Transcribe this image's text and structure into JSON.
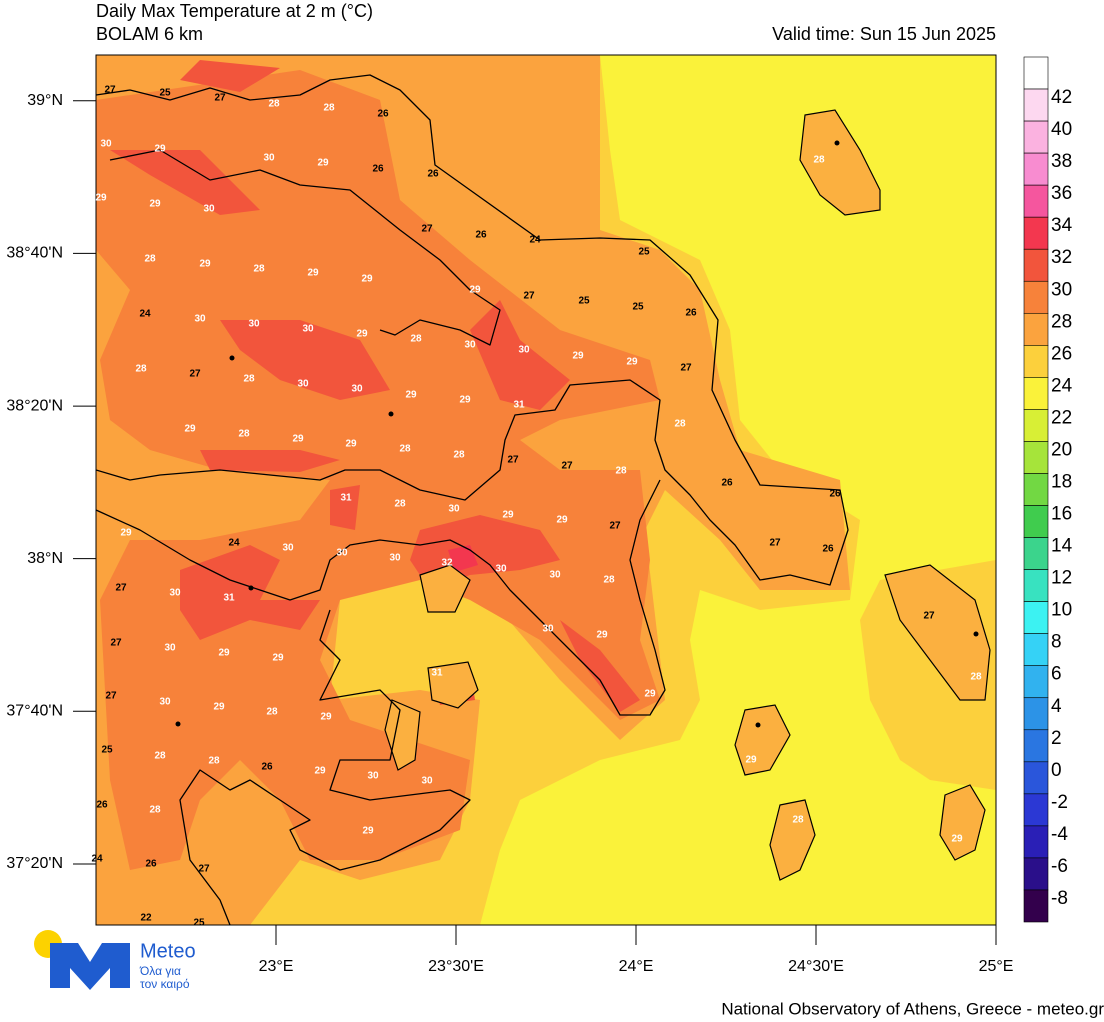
{
  "header": {
    "title": "Daily Max Temperature at 2 m (°C)",
    "model": "BOLAM 6 km",
    "valid_time": "Valid time: Sun 15 Jun 2025"
  },
  "map": {
    "xlim": [
      22.5,
      25
    ],
    "xticks": [
      {
        "value": 23,
        "label": "23°E"
      },
      {
        "value": 23.5,
        "label": "23°30'E"
      },
      {
        "value": 24,
        "label": "24°E"
      },
      {
        "value": 24.5,
        "label": "24°30'E"
      },
      {
        "value": 25,
        "label": "25°E"
      }
    ],
    "ylim": [
      37.2,
      39.1
    ],
    "yticks": [
      {
        "value": 39,
        "label": "39°N"
      },
      {
        "value": 38.6667,
        "label": "38°40'N"
      },
      {
        "value": 38.3333,
        "label": "38°20'N"
      },
      {
        "value": 38,
        "label": "38°N"
      },
      {
        "value": 37.6667,
        "label": "37°40'N"
      },
      {
        "value": 37.3333,
        "label": "37°20'N"
      }
    ],
    "point_values": [
      27,
      25,
      27,
      28,
      28,
      26,
      30,
      29,
      30,
      29,
      26,
      26,
      29,
      29,
      30,
      27,
      26,
      24,
      25,
      28,
      29,
      28,
      29,
      29,
      24,
      30,
      30,
      30,
      29,
      28,
      30,
      30,
      29,
      29,
      29,
      27,
      25,
      25,
      26,
      27,
      28,
      27,
      28,
      30,
      30,
      29,
      29,
      31,
      28,
      29,
      28,
      29,
      29,
      28,
      28,
      27,
      27,
      28,
      26,
      26,
      31,
      28,
      30,
      29,
      29,
      27,
      29,
      24,
      30,
      30,
      30,
      32,
      30,
      30,
      28,
      27,
      26,
      27,
      30,
      31,
      30,
      29,
      27,
      28,
      27,
      30,
      29,
      29,
      31,
      29,
      27,
      30,
      29,
      28,
      29,
      25,
      28,
      28,
      26,
      29,
      30,
      30,
      29,
      26,
      28,
      29,
      28,
      29,
      28,
      24,
      26,
      27,
      22,
      25
    ]
  },
  "colorbar": {
    "levels": [
      42,
      40,
      38,
      36,
      34,
      32,
      30,
      28,
      26,
      24,
      22,
      20,
      18,
      16,
      14,
      12,
      10,
      8,
      6,
      4,
      2,
      0,
      -2,
      -4,
      -6,
      -8
    ],
    "colors": [
      "#ffffff",
      "#fdd8f0",
      "#fbb2e0",
      "#f88cd0",
      "#f5569e",
      "#f3374f",
      "#f2553c",
      "#f7823a",
      "#fba33e",
      "#fcd03c",
      "#faf23a",
      "#d8ef35",
      "#a6e43a",
      "#72d843",
      "#40cc4e",
      "#3bd48c",
      "#38e2c0",
      "#3cf2f2",
      "#35d2f6",
      "#31b2ef",
      "#2c93e7",
      "#2a76e1",
      "#2a56db",
      "#2b38d4",
      "#2a1fb6",
      "#2a0f8a",
      "#33004c"
    ]
  },
  "logo": {
    "name": "Meteo",
    "tagline": [
      "Όλα για",
      "τον καιρό"
    ]
  },
  "footer": "National Observatory of Athens, Greece - meteo.gr"
}
